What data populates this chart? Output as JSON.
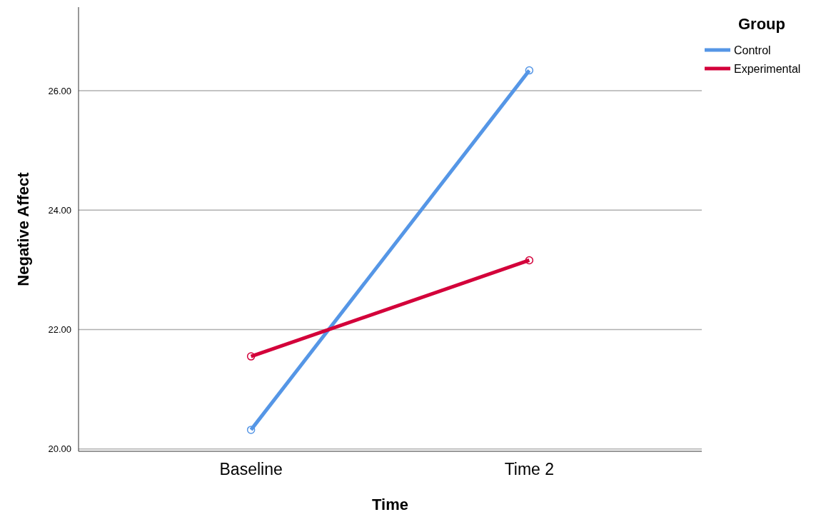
{
  "chart_data": {
    "type": "line",
    "xlabel": "Time",
    "ylabel": "Negative Affect",
    "legend_title": "Group",
    "categories": [
      "Baseline",
      "Time 2"
    ],
    "series": [
      {
        "name": "Control",
        "color": "#5596e6",
        "values": [
          20.32,
          26.34
        ]
      },
      {
        "name": "Experimental",
        "color": "#d3003a",
        "values": [
          21.55,
          23.16
        ]
      }
    ],
    "ylim": [
      19.96,
      27.4
    ],
    "yticks": [
      {
        "value": 20,
        "label": "20.00"
      },
      {
        "value": 22,
        "label": "22.00"
      },
      {
        "value": 24,
        "label": "24.00"
      },
      {
        "value": 26,
        "label": "26.00"
      }
    ],
    "grid": "y",
    "legend": "top right",
    "marker": "circle",
    "line_style": "solid"
  }
}
